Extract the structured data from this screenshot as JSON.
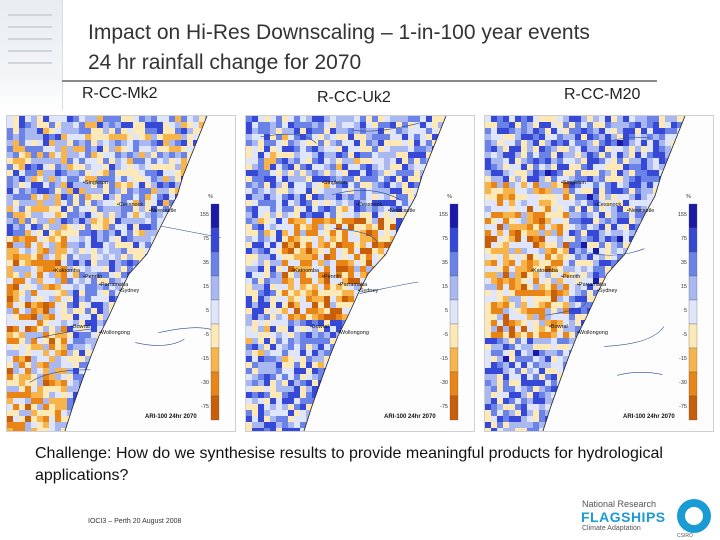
{
  "slide": {
    "title_line1": "Impact on Hi-Res Downscaling – 1-in-100 year events",
    "title_line2": "24 hr rainfall change for 2070",
    "challenge": "Challenge:  How do we synthesise results to provide meaningful products for hydrological applications?",
    "footer": "IOCI3 – Perth 20 August 2008"
  },
  "panels": [
    {
      "label": "R-CC-Mk2",
      "ari_label": "ARI-100 24hr 2070"
    },
    {
      "label": "R-CC-Uk2",
      "ari_label": "ARI-100 24hr 2070"
    },
    {
      "label": "R-CC-M20",
      "ari_label": "ARI-100 24hr 2070"
    }
  ],
  "towns": [
    "Singleton",
    "Cessnock",
    "Newcastle",
    "Katoomba",
    "Penrith",
    "Parramatta",
    "Sydney",
    "Bowral",
    "Wollongong"
  ],
  "legend": {
    "unit": "%",
    "values": [
      "155",
      "75",
      "35",
      "15",
      "5",
      "-5",
      "-15",
      "-30",
      "-75"
    ],
    "colors": [
      "#1a1aa8",
      "#3548d6",
      "#6b82e6",
      "#a9b8f0",
      "#dfe6fb",
      "#fde8b8",
      "#f7b44a",
      "#e98417",
      "#c75e0a"
    ]
  },
  "logo": {
    "line1": "National Research",
    "line2": "FLAGSHIPS",
    "line3": "Climate Adaptation",
    "org": "CSIRO"
  }
}
